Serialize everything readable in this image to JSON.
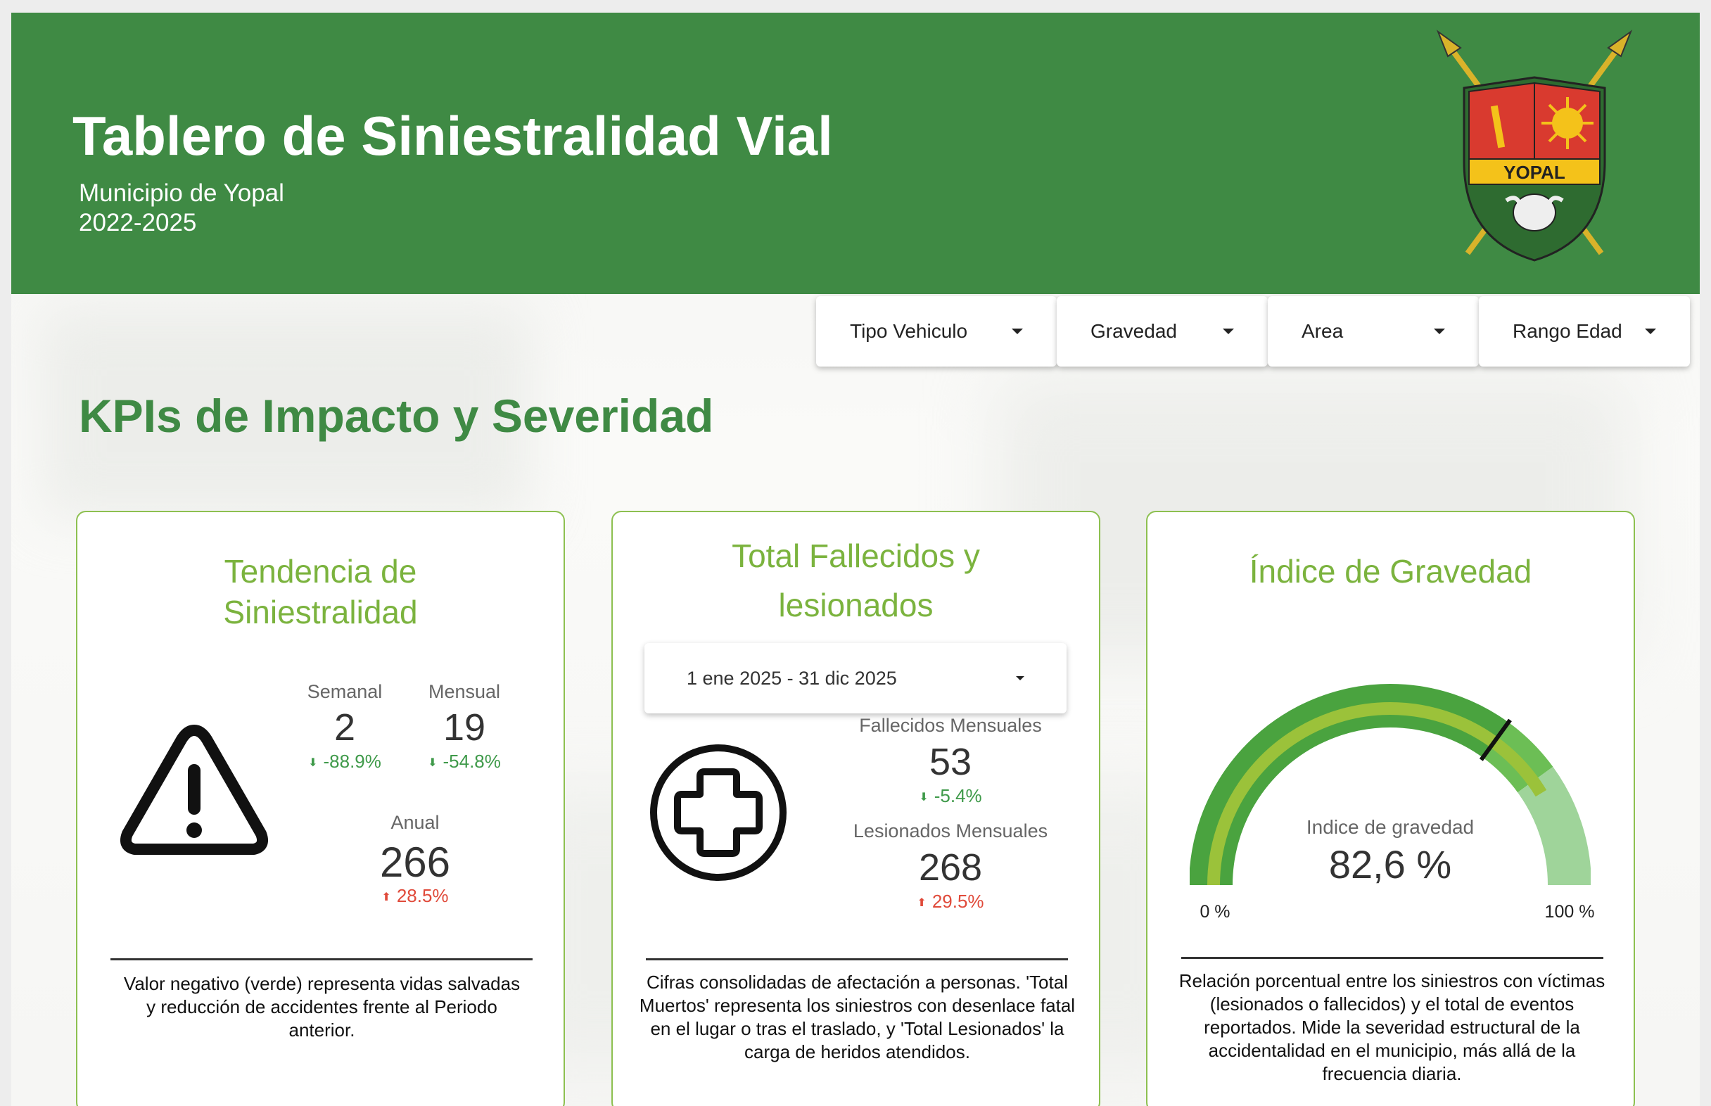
{
  "header": {
    "title": "Tablero de Siniestralidad Vial",
    "subtitle_line1": "Municipio de Yopal",
    "subtitle_line2": "2022-2025",
    "logo_text": "YOPAL"
  },
  "filters": [
    {
      "label": "Tipo Vehiculo"
    },
    {
      "label": "Gravedad"
    },
    {
      "label": "Area"
    },
    {
      "label": "Rango Edad"
    }
  ],
  "section_title": "KPIs de Impacto y Severidad",
  "cards": {
    "tendencia": {
      "title_line1": "Tendencia de",
      "title_line2": "Siniestralidad",
      "icon": "warning-icon",
      "semanal": {
        "label": "Semanal",
        "value": "2",
        "delta": "-88.9%"
      },
      "mensual": {
        "label": "Mensual",
        "value": "19",
        "delta": "-54.8%"
      },
      "anual": {
        "label": "Anual",
        "value": "266",
        "delta": "28.5%"
      },
      "note": "Valor negativo (verde) representa vidas salvadas y reducción de accidentes frente al Periodo anterior."
    },
    "fallecidos": {
      "title_line1": "Total Fallecidos y",
      "title_line2": "lesionados",
      "date_range": "1 ene 2025 - 31 dic 2025",
      "icon": "medical-cross-icon",
      "fallecidos": {
        "label": "Fallecidos Mensuales",
        "value": "53",
        "delta": "-5.4%"
      },
      "lesionados": {
        "label": "Lesionados Mensuales",
        "value": "268",
        "delta": "29.5%"
      },
      "note": "Cifras consolidadas de afectación a personas. 'Total Muertos' representa los siniestros con desenlace fatal en el lugar o tras el traslado, y 'Total Lesionados' la carga de heridos atendidos."
    },
    "indice": {
      "title": "Índice de Gravedad",
      "gauge_label": "Indice de gravedad",
      "gauge_value": "82,6 %",
      "gauge_fraction": 0.826,
      "min_label": "0 %",
      "max_label": "100 %",
      "note": "Relación porcentual entre los siniestros con víctimas (lesionados o fallecidos) y el total de eventos reportados. Mide la severidad estructural de la accidentalidad en el municipio, más allá de la frecuencia diaria."
    }
  },
  "colors": {
    "header_green": "#3f8a44",
    "title_green": "#7bb33e",
    "down_green": "#3f9a4a",
    "up_red": "#e04a3a"
  }
}
